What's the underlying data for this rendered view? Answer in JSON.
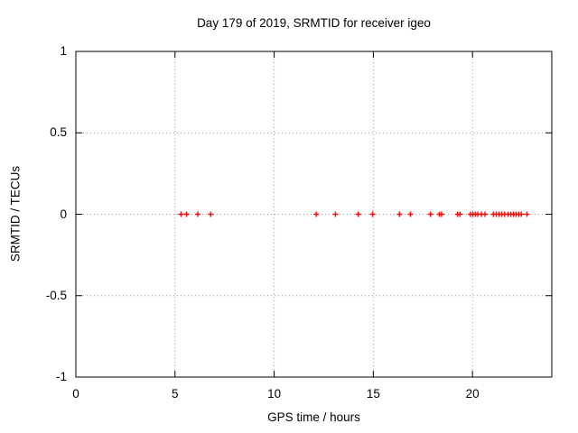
{
  "figure": {
    "background": "#ffffff"
  },
  "chart_data": {
    "type": "scatter",
    "title": "Day 179 of 2019, SRMTID for receiver igeo",
    "xlabel": "GPS time / hours",
    "ylabel": "SRMTID / TECUs",
    "xlim": [
      0,
      24
    ],
    "ylim": [
      -1,
      1
    ],
    "xticks": [
      0,
      5,
      10,
      15,
      20
    ],
    "xtick_labels": [
      "0",
      "5",
      "10",
      "15",
      "20"
    ],
    "yticks": [
      1,
      0.5,
      0,
      -0.5,
      -1
    ],
    "ytick_labels": [
      "1",
      "0.5",
      "0",
      "-0.5",
      "-1"
    ],
    "grid": "dotted at every labeled tick, ticks mirrored on all four borders",
    "legend": "none",
    "colors": {
      "marker": "#ff0000",
      "border": "#000000",
      "grid": "#9b9b9b",
      "text": "#000000",
      "background": "#ffffff"
    },
    "series": [
      {
        "name": "SRMTID",
        "marker": "plus",
        "marker_size": 7,
        "x": [
          5.3,
          5.58,
          6.15,
          6.8,
          12.12,
          13.09,
          14.24,
          14.96,
          16.32,
          16.87,
          17.88,
          18.33,
          18.44,
          19.25,
          19.37,
          19.9,
          20.02,
          20.14,
          20.27,
          20.45,
          20.63,
          21.05,
          21.2,
          21.34,
          21.48,
          21.62,
          21.8,
          21.94,
          22.07,
          22.2,
          22.33,
          22.46,
          22.75
        ],
        "y": [
          0,
          0,
          0,
          0,
          0,
          0,
          0,
          0,
          0,
          0,
          0,
          0,
          0,
          0,
          0,
          0,
          0,
          0,
          0,
          0,
          0,
          0,
          0,
          0,
          0,
          0,
          0,
          0,
          0,
          0,
          0,
          0,
          0
        ]
      }
    ]
  }
}
